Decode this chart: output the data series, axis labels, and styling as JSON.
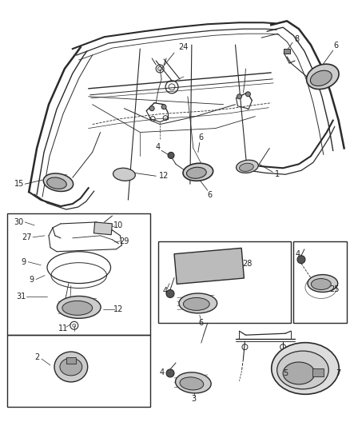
{
  "bg_color": "#f5f5f5",
  "line_color": "#2a2a2a",
  "fig_width": 4.38,
  "fig_height": 5.33,
  "dpi": 100
}
